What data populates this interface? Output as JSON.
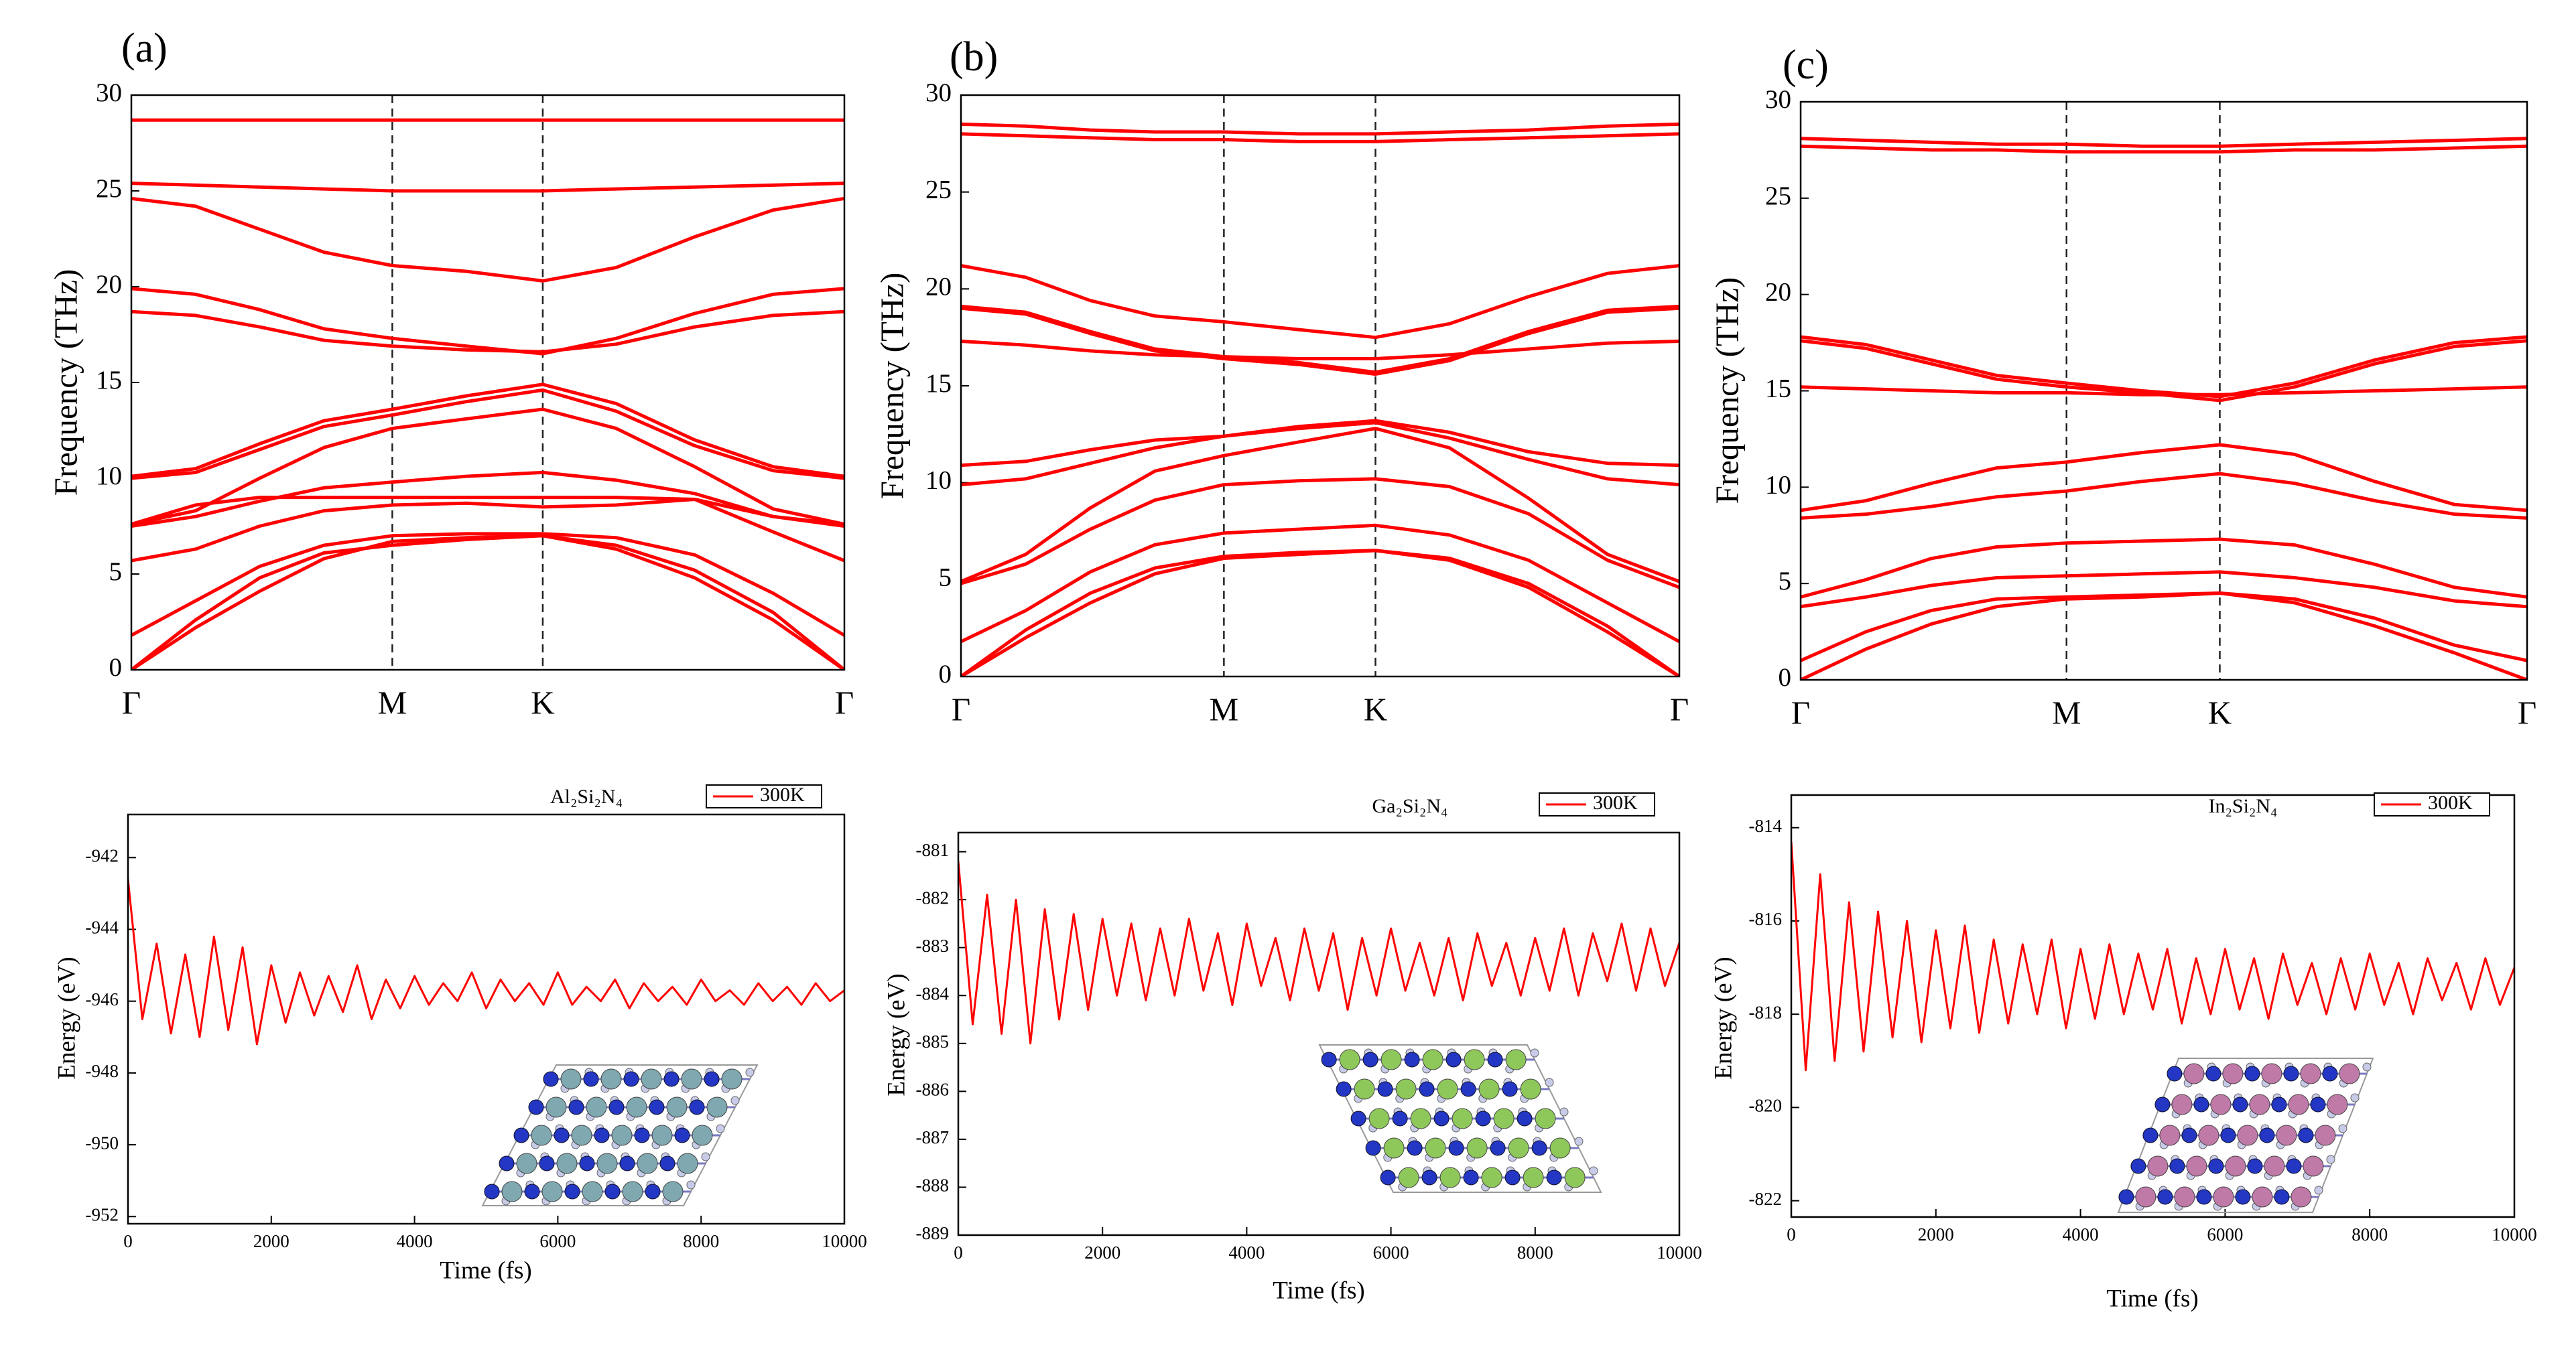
{
  "chart_data": [
    {
      "type": "line",
      "panel": "(a)",
      "ylabel": "Frequency (THz)",
      "color": "#ff0000",
      "vlines": true,
      "x": [
        0,
        0.09,
        0.18,
        0.27,
        0.366,
        0.47,
        0.577,
        0.68,
        0.79,
        0.9,
        1
      ],
      "xlim": [
        0,
        1
      ],
      "xticks": [
        {
          "value": 0,
          "label": "Γ"
        },
        {
          "value": 0.366,
          "label": "M"
        },
        {
          "value": 0.577,
          "label": "K"
        },
        {
          "value": 1,
          "label": "Γ"
        }
      ],
      "ylim": [
        0,
        30
      ],
      "yticks": [
        0,
        5,
        10,
        15,
        20,
        25,
        30
      ],
      "series": [
        {
          "values": [
            28.7,
            28.7,
            28.7,
            28.7,
            28.7,
            28.7,
            28.7,
            28.7,
            28.7,
            28.7,
            28.7
          ]
        },
        {
          "values": [
            25.4,
            25.3,
            25.2,
            25.1,
            25.0,
            25.0,
            25.0,
            25.1,
            25.2,
            25.3,
            25.4
          ]
        },
        {
          "values": [
            24.6,
            24.2,
            23.0,
            21.8,
            21.1,
            20.8,
            20.3,
            21.0,
            22.6,
            24.0,
            24.6
          ]
        },
        {
          "values": [
            19.9,
            19.6,
            18.8,
            17.8,
            17.3,
            16.9,
            16.5,
            17.3,
            18.6,
            19.6,
            19.9
          ]
        },
        {
          "values": [
            18.7,
            18.5,
            17.9,
            17.2,
            16.9,
            16.7,
            16.6,
            17.0,
            17.9,
            18.5,
            18.7
          ]
        },
        {
          "values": [
            10.1,
            10.5,
            11.8,
            13.0,
            13.6,
            14.3,
            14.9,
            13.9,
            12.0,
            10.6,
            10.1
          ]
        },
        {
          "values": [
            10.0,
            10.3,
            11.5,
            12.7,
            13.3,
            14.0,
            14.6,
            13.5,
            11.7,
            10.4,
            10.0
          ]
        },
        {
          "values": [
            7.6,
            8.3,
            10.0,
            11.6,
            12.6,
            13.1,
            13.6,
            12.6,
            10.6,
            8.4,
            7.6
          ]
        },
        {
          "values": [
            7.5,
            8.0,
            8.8,
            9.5,
            9.8,
            10.1,
            10.3,
            9.9,
            9.2,
            8.0,
            7.6
          ]
        },
        {
          "values": [
            7.6,
            8.6,
            9.0,
            9.0,
            9.0,
            9.0,
            9.0,
            9.0,
            8.9,
            8.0,
            7.5
          ]
        },
        {
          "values": [
            5.7,
            6.3,
            7.5,
            8.3,
            8.6,
            8.7,
            8.5,
            8.6,
            8.9,
            7.2,
            5.7
          ]
        },
        {
          "values": [
            1.8,
            3.6,
            5.4,
            6.5,
            7.0,
            7.1,
            7.1,
            6.9,
            6.0,
            4.0,
            1.8
          ]
        },
        {
          "values": [
            0,
            2.6,
            4.8,
            6.1,
            6.5,
            6.8,
            7.0,
            6.5,
            5.2,
            3.0,
            0
          ]
        },
        {
          "values": [
            0,
            2.2,
            4.1,
            5.8,
            6.7,
            6.9,
            7.0,
            6.3,
            4.8,
            2.6,
            0
          ]
        }
      ]
    },
    {
      "type": "line",
      "panel": "(b)",
      "ylabel": "Frequency (THz)",
      "color": "#ff0000",
      "vlines": true,
      "x": [
        0,
        0.09,
        0.18,
        0.27,
        0.366,
        0.47,
        0.577,
        0.68,
        0.79,
        0.9,
        1
      ],
      "xlim": [
        0,
        1
      ],
      "xticks": [
        {
          "value": 0,
          "label": "Γ"
        },
        {
          "value": 0.366,
          "label": "M"
        },
        {
          "value": 0.577,
          "label": "K"
        },
        {
          "value": 1,
          "label": "Γ"
        }
      ],
      "ylim": [
        0,
        30
      ],
      "yticks": [
        0,
        5,
        10,
        15,
        20,
        25,
        30
      ],
      "series": [
        {
          "values": [
            28.5,
            28.4,
            28.2,
            28.1,
            28.1,
            28.0,
            28.0,
            28.1,
            28.2,
            28.4,
            28.5
          ]
        },
        {
          "values": [
            28.0,
            27.9,
            27.8,
            27.7,
            27.7,
            27.6,
            27.6,
            27.7,
            27.8,
            27.9,
            28.0
          ]
        },
        {
          "values": [
            21.2,
            20.6,
            19.4,
            18.6,
            18.3,
            17.9,
            17.5,
            18.2,
            19.6,
            20.8,
            21.2
          ]
        },
        {
          "values": [
            19.1,
            18.8,
            17.8,
            16.9,
            16.5,
            16.2,
            15.7,
            16.4,
            17.8,
            18.9,
            19.1
          ]
        },
        {
          "values": [
            19.0,
            18.7,
            17.7,
            16.8,
            16.4,
            16.1,
            15.6,
            16.3,
            17.7,
            18.8,
            19.0
          ]
        },
        {
          "values": [
            17.3,
            17.1,
            16.8,
            16.6,
            16.5,
            16.4,
            16.4,
            16.6,
            16.9,
            17.2,
            17.3
          ]
        },
        {
          "values": [
            10.9,
            11.1,
            11.7,
            12.2,
            12.4,
            12.9,
            13.2,
            12.6,
            11.6,
            11.0,
            10.9
          ]
        },
        {
          "values": [
            9.9,
            10.2,
            11.0,
            11.8,
            12.4,
            12.8,
            13.1,
            12.3,
            11.2,
            10.2,
            9.9
          ]
        },
        {
          "values": [
            4.9,
            6.3,
            8.7,
            10.6,
            11.4,
            12.1,
            12.8,
            11.8,
            9.2,
            6.3,
            4.9
          ]
        },
        {
          "values": [
            4.8,
            5.8,
            7.6,
            9.1,
            9.9,
            10.1,
            10.2,
            9.8,
            8.4,
            6.0,
            4.6
          ]
        },
        {
          "values": [
            1.8,
            3.4,
            5.4,
            6.8,
            7.4,
            7.6,
            7.8,
            7.3,
            6.0,
            3.8,
            1.8
          ]
        },
        {
          "values": [
            0,
            2.4,
            4.3,
            5.6,
            6.2,
            6.4,
            6.5,
            6.1,
            4.8,
            2.6,
            0
          ]
        },
        {
          "values": [
            0,
            2.0,
            3.8,
            5.3,
            6.1,
            6.3,
            6.5,
            6.0,
            4.6,
            2.3,
            0
          ]
        }
      ]
    },
    {
      "type": "line",
      "panel": "(c)",
      "ylabel": "Frequency (THz)",
      "color": "#ff0000",
      "vlines": true,
      "x": [
        0,
        0.09,
        0.18,
        0.27,
        0.366,
        0.47,
        0.577,
        0.68,
        0.79,
        0.9,
        1
      ],
      "xlim": [
        0,
        1
      ],
      "xticks": [
        {
          "value": 0,
          "label": "Γ"
        },
        {
          "value": 0.366,
          "label": "M"
        },
        {
          "value": 0.577,
          "label": "K"
        },
        {
          "value": 1,
          "label": "Γ"
        }
      ],
      "ylim": [
        0,
        30
      ],
      "yticks": [
        0,
        5,
        10,
        15,
        20,
        25,
        30
      ],
      "series": [
        {
          "values": [
            28.1,
            28.0,
            27.9,
            27.8,
            27.8,
            27.7,
            27.7,
            27.8,
            27.9,
            28.0,
            28.1
          ]
        },
        {
          "values": [
            27.7,
            27.6,
            27.5,
            27.5,
            27.4,
            27.4,
            27.4,
            27.5,
            27.5,
            27.6,
            27.7
          ]
        },
        {
          "values": [
            17.8,
            17.4,
            16.6,
            15.8,
            15.4,
            15.0,
            14.7,
            15.4,
            16.6,
            17.5,
            17.8
          ]
        },
        {
          "values": [
            17.6,
            17.2,
            16.4,
            15.6,
            15.2,
            14.9,
            14.5,
            15.2,
            16.4,
            17.3,
            17.6
          ]
        },
        {
          "values": [
            15.2,
            15.1,
            15.0,
            14.9,
            14.9,
            14.8,
            14.8,
            14.9,
            15.0,
            15.1,
            15.2
          ]
        },
        {
          "values": [
            8.8,
            9.3,
            10.2,
            11.0,
            11.3,
            11.8,
            12.2,
            11.7,
            10.3,
            9.1,
            8.8
          ]
        },
        {
          "values": [
            8.4,
            8.6,
            9.0,
            9.5,
            9.8,
            10.3,
            10.7,
            10.2,
            9.3,
            8.6,
            8.4
          ]
        },
        {
          "values": [
            4.3,
            5.2,
            6.3,
            6.9,
            7.1,
            7.2,
            7.3,
            7.0,
            6.0,
            4.8,
            4.3
          ]
        },
        {
          "values": [
            3.8,
            4.3,
            4.9,
            5.3,
            5.4,
            5.5,
            5.6,
            5.3,
            4.8,
            4.1,
            3.8
          ]
        },
        {
          "values": [
            1.0,
            2.5,
            3.6,
            4.2,
            4.3,
            4.4,
            4.5,
            4.2,
            3.2,
            1.8,
            1.0
          ]
        },
        {
          "values": [
            0,
            1.6,
            2.9,
            3.8,
            4.2,
            4.3,
            4.5,
            4.0,
            2.8,
            1.4,
            0
          ]
        }
      ]
    },
    {
      "type": "line",
      "title": "Al₂Si₂N₄",
      "xlabel": "Time (fs)",
      "ylabel": "Energy (eV)",
      "legend": "upper right",
      "x": [
        0,
        200,
        400,
        600,
        800,
        1000,
        1200,
        1400,
        1600,
        1800,
        2000,
        2200,
        2400,
        2600,
        2800,
        3000,
        3200,
        3400,
        3600,
        3800,
        4000,
        4200,
        4400,
        4600,
        4800,
        5000,
        5200,
        5400,
        5600,
        5800,
        6000,
        6200,
        6400,
        6600,
        6800,
        7000,
        7200,
        7400,
        7600,
        7800,
        8000,
        8200,
        8400,
        8600,
        8800,
        9000,
        9200,
        9400,
        9600,
        9800,
        10000
      ],
      "xlim": [
        0,
        10000
      ],
      "xticks": [
        0,
        2000,
        4000,
        6000,
        8000,
        10000
      ],
      "ylim": [
        -952.2,
        -940.8
      ],
      "yticks": [
        -952,
        -950,
        -948,
        -946,
        -944,
        -942
      ],
      "series": [
        {
          "name": "300K",
          "color": "#ff0000",
          "values": [
            -942.6,
            -946.5,
            -944.4,
            -946.9,
            -944.7,
            -947.0,
            -944.2,
            -946.8,
            -944.5,
            -947.2,
            -945.0,
            -946.6,
            -945.2,
            -946.4,
            -945.3,
            -946.3,
            -945.0,
            -946.5,
            -945.4,
            -946.2,
            -945.3,
            -946.1,
            -945.5,
            -946.0,
            -945.2,
            -946.2,
            -945.4,
            -946.0,
            -945.5,
            -946.1,
            -945.2,
            -946.1,
            -945.6,
            -946.0,
            -945.4,
            -946.2,
            -945.5,
            -946.0,
            -945.6,
            -946.1,
            -945.4,
            -946.0,
            -945.7,
            -946.1,
            -945.5,
            -946.0,
            -945.6,
            -946.1,
            -945.5,
            -946.0,
            -945.7
          ]
        }
      ]
    },
    {
      "type": "line",
      "title": "Ga₂Si₂N₄",
      "xlabel": "Time (fs)",
      "ylabel": "Energy (eV)",
      "legend": "upper right",
      "x": [
        0,
        200,
        400,
        600,
        800,
        1000,
        1200,
        1400,
        1600,
        1800,
        2000,
        2200,
        2400,
        2600,
        2800,
        3000,
        3200,
        3400,
        3600,
        3800,
        4000,
        4200,
        4400,
        4600,
        4800,
        5000,
        5200,
        5400,
        5600,
        5800,
        6000,
        6200,
        6400,
        6600,
        6800,
        7000,
        7200,
        7400,
        7600,
        7800,
        8000,
        8200,
        8400,
        8600,
        8800,
        9000,
        9200,
        9400,
        9600,
        9800,
        10000
      ],
      "xlim": [
        0,
        10000
      ],
      "xticks": [
        0,
        2000,
        4000,
        6000,
        8000,
        10000
      ],
      "ylim": [
        -889,
        -880.6
      ],
      "yticks": [
        -889,
        -888,
        -887,
        -886,
        -885,
        -884,
        -883,
        -882,
        -881
      ],
      "series": [
        {
          "name": "300K",
          "color": "#ff0000",
          "values": [
            -881.2,
            -884.6,
            -881.9,
            -884.8,
            -882.0,
            -885.0,
            -882.2,
            -884.5,
            -882.3,
            -884.3,
            -882.4,
            -884.0,
            -882.5,
            -884.1,
            -882.6,
            -884.0,
            -882.4,
            -883.9,
            -882.7,
            -884.2,
            -882.5,
            -883.8,
            -882.8,
            -884.1,
            -882.6,
            -883.9,
            -882.7,
            -884.3,
            -882.8,
            -884.0,
            -882.6,
            -883.9,
            -882.9,
            -884.0,
            -882.8,
            -884.1,
            -882.7,
            -883.8,
            -882.9,
            -884.0,
            -882.8,
            -883.9,
            -882.6,
            -884.0,
            -882.7,
            -883.7,
            -882.5,
            -883.9,
            -882.6,
            -883.8,
            -882.9
          ]
        }
      ]
    },
    {
      "type": "line",
      "title": "In₂Si₂N₄",
      "xlabel": "Time (fs)",
      "ylabel": "Energy (eV)",
      "legend": "upper right",
      "x": [
        0,
        200,
        400,
        600,
        800,
        1000,
        1200,
        1400,
        1600,
        1800,
        2000,
        2200,
        2400,
        2600,
        2800,
        3000,
        3200,
        3400,
        3600,
        3800,
        4000,
        4200,
        4400,
        4600,
        4800,
        5000,
        5200,
        5400,
        5600,
        5800,
        6000,
        6200,
        6400,
        6600,
        6800,
        7000,
        7200,
        7400,
        7600,
        7800,
        8000,
        8200,
        8400,
        8600,
        8800,
        9000,
        9200,
        9400,
        9600,
        9800,
        10000
      ],
      "xlim": [
        0,
        10000
      ],
      "xticks": [
        0,
        2000,
        4000,
        6000,
        8000,
        10000
      ],
      "ylim": [
        -822.35,
        -813.3
      ],
      "yticks": [
        -822,
        -820,
        -818,
        -816,
        -814
      ],
      "series": [
        {
          "name": "300K",
          "color": "#ff0000",
          "values": [
            -814.3,
            -819.2,
            -815.0,
            -819.0,
            -815.6,
            -818.8,
            -815.8,
            -818.5,
            -816.0,
            -818.6,
            -816.2,
            -818.3,
            -816.1,
            -818.4,
            -816.4,
            -818.2,
            -816.5,
            -818.0,
            -816.4,
            -818.3,
            -816.6,
            -818.1,
            -816.5,
            -818.0,
            -816.7,
            -817.9,
            -816.6,
            -818.2,
            -816.8,
            -818.0,
            -816.6,
            -817.9,
            -816.8,
            -818.1,
            -816.7,
            -817.8,
            -816.9,
            -818.0,
            -816.8,
            -817.9,
            -816.7,
            -817.8,
            -816.9,
            -818.0,
            -816.8,
            -817.7,
            -816.9,
            -817.9,
            -816.8,
            -817.8,
            -817.0
          ]
        }
      ]
    }
  ]
}
